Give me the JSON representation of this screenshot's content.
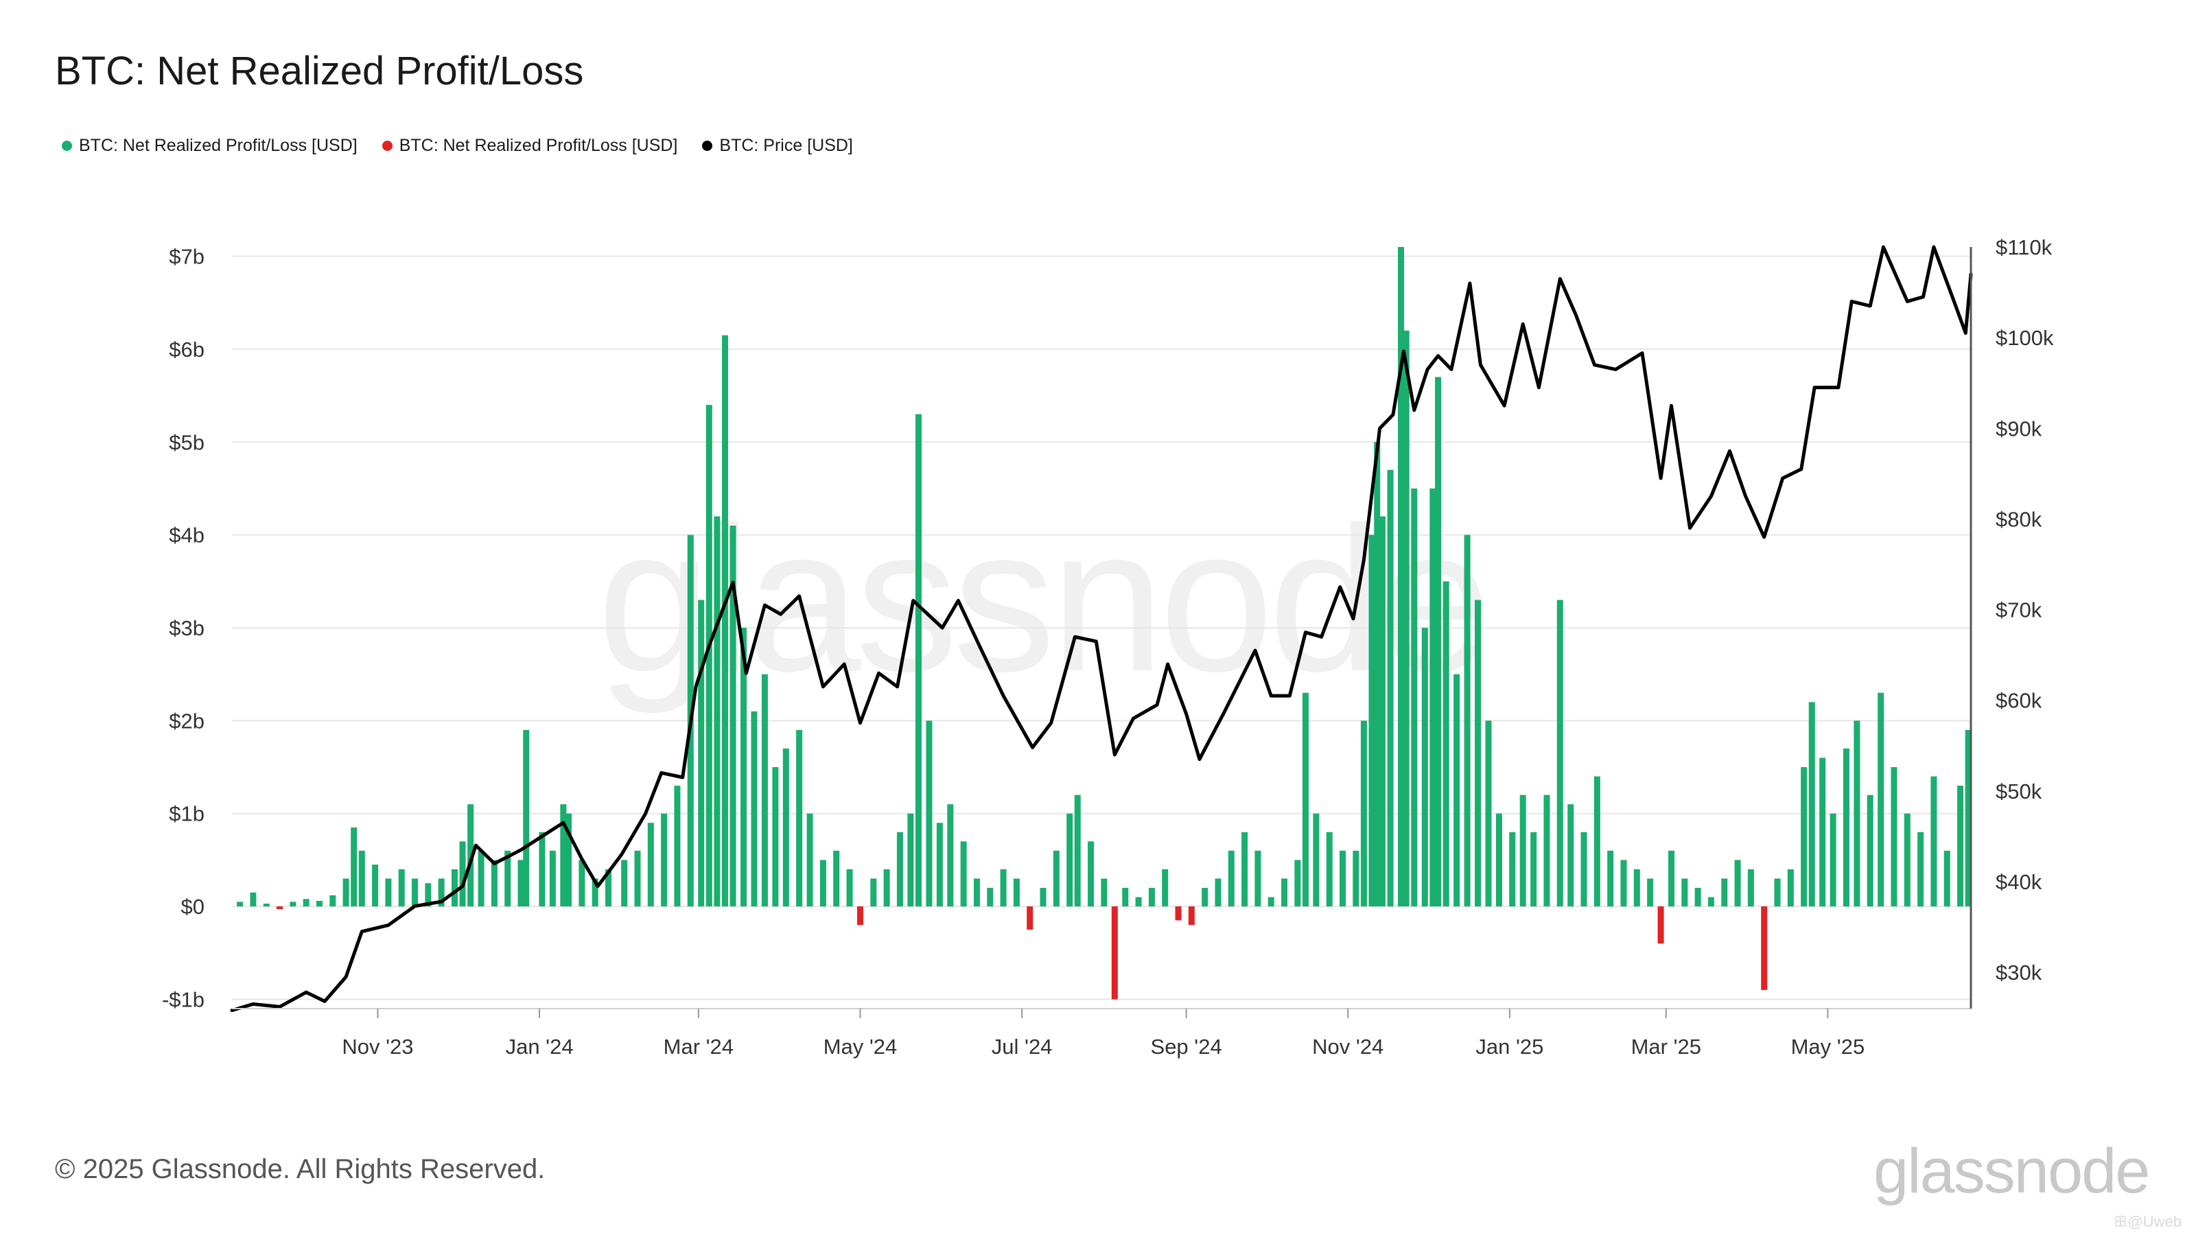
{
  "title": "BTC: Net Realized Profit/Loss",
  "legend": [
    {
      "label": "BTC: Net Realized Profit/Loss [USD]",
      "color": "#1aae6f"
    },
    {
      "label": "BTC: Net Realized Profit/Loss [USD]",
      "color": "#e02424"
    },
    {
      "label": "BTC: Price [USD]",
      "color": "#000000"
    }
  ],
  "footer": "© 2025 Glassnode. All Rights Reserved.",
  "brand": "glassnode",
  "watermark": "glassnode",
  "corner_mark": "ꕥ@Uweb",
  "chart_data": {
    "type": "bar",
    "x_start": "2023-09-07",
    "x_end": "2025-06-24",
    "x_ticks": [
      {
        "label": "Nov '23",
        "date": "2023-11-01"
      },
      {
        "label": "Jan '24",
        "date": "2024-01-01"
      },
      {
        "label": "Mar '24",
        "date": "2024-03-01"
      },
      {
        "label": "May '24",
        "date": "2024-05-01"
      },
      {
        "label": "Jul '24",
        "date": "2024-07-01"
      },
      {
        "label": "Sep '24",
        "date": "2024-09-01"
      },
      {
        "label": "Nov '24",
        "date": "2024-11-01"
      },
      {
        "label": "Jan '25",
        "date": "2025-01-01"
      },
      {
        "label": "Mar '25",
        "date": "2025-03-01"
      },
      {
        "label": "May '25",
        "date": "2025-05-01"
      }
    ],
    "y_left": {
      "ticks": [
        {
          "label": "-$1b",
          "value": -1
        },
        {
          "label": "$0",
          "value": 0
        },
        {
          "label": "$1b",
          "value": 1
        },
        {
          "label": "$2b",
          "value": 2
        },
        {
          "label": "$3b",
          "value": 3
        },
        {
          "label": "$4b",
          "value": 4
        },
        {
          "label": "$5b",
          "value": 5
        },
        {
          "label": "$6b",
          "value": 6
        },
        {
          "label": "$7b",
          "value": 7
        }
      ],
      "range": [
        -1.1,
        7.1
      ],
      "unit": "USD billions"
    },
    "y_right": {
      "ticks": [
        {
          "label": "$30k",
          "value": 30
        },
        {
          "label": "$40k",
          "value": 40
        },
        {
          "label": "$50k",
          "value": 50
        },
        {
          "label": "$60k",
          "value": 60
        },
        {
          "label": "$70k",
          "value": 70
        },
        {
          "label": "$80k",
          "value": 80
        },
        {
          "label": "$90k",
          "value": 90
        },
        {
          "label": "$100k",
          "value": 100
        },
        {
          "label": "$110k",
          "value": 110
        }
      ],
      "range": [
        26.0,
        110.0
      ],
      "unit": "USD thousands"
    },
    "grid": true,
    "positive_color": "#1aae6f",
    "negative_color": "#e02424",
    "price_color": "#000000",
    "series": [
      {
        "name": "BTC: Net Realized Profit/Loss [USD]",
        "kind": "bar",
        "y_axis": "left",
        "points": [
          [
            "2023-09-10",
            0.05
          ],
          [
            "2023-09-15",
            0.15
          ],
          [
            "2023-09-20",
            0.03
          ],
          [
            "2023-09-25",
            -0.03
          ],
          [
            "2023-09-30",
            0.05
          ],
          [
            "2023-10-05",
            0.08
          ],
          [
            "2023-10-10",
            0.06
          ],
          [
            "2023-10-15",
            0.12
          ],
          [
            "2023-10-20",
            0.3
          ],
          [
            "2023-10-23",
            0.85
          ],
          [
            "2023-10-26",
            0.6
          ],
          [
            "2023-10-31",
            0.45
          ],
          [
            "2023-11-05",
            0.3
          ],
          [
            "2023-11-10",
            0.4
          ],
          [
            "2023-11-15",
            0.3
          ],
          [
            "2023-11-20",
            0.25
          ],
          [
            "2023-11-25",
            0.3
          ],
          [
            "2023-11-30",
            0.4
          ],
          [
            "2023-12-03",
            0.7
          ],
          [
            "2023-12-06",
            1.1
          ],
          [
            "2023-12-10",
            0.6
          ],
          [
            "2023-12-15",
            0.5
          ],
          [
            "2023-12-20",
            0.6
          ],
          [
            "2023-12-25",
            0.5
          ],
          [
            "2023-12-27",
            1.9
          ],
          [
            "2024-01-02",
            0.8
          ],
          [
            "2024-01-06",
            0.6
          ],
          [
            "2024-01-10",
            1.1
          ],
          [
            "2024-01-12",
            1.0
          ],
          [
            "2024-01-17",
            0.5
          ],
          [
            "2024-01-22",
            0.3
          ],
          [
            "2024-01-27",
            0.4
          ],
          [
            "2024-02-02",
            0.5
          ],
          [
            "2024-02-07",
            0.6
          ],
          [
            "2024-02-12",
            0.9
          ],
          [
            "2024-02-17",
            1.0
          ],
          [
            "2024-02-22",
            1.3
          ],
          [
            "2024-02-27",
            4.0
          ],
          [
            "2024-03-02",
            3.3
          ],
          [
            "2024-03-05",
            5.4
          ],
          [
            "2024-03-08",
            4.2
          ],
          [
            "2024-03-11",
            6.15
          ],
          [
            "2024-03-14",
            4.1
          ],
          [
            "2024-03-18",
            3.0
          ],
          [
            "2024-03-22",
            2.1
          ],
          [
            "2024-03-26",
            2.5
          ],
          [
            "2024-03-30",
            1.5
          ],
          [
            "2024-04-03",
            1.7
          ],
          [
            "2024-04-08",
            1.9
          ],
          [
            "2024-04-12",
            1.0
          ],
          [
            "2024-04-17",
            0.5
          ],
          [
            "2024-04-22",
            0.6
          ],
          [
            "2024-04-27",
            0.4
          ],
          [
            "2024-05-01",
            -0.2
          ],
          [
            "2024-05-06",
            0.3
          ],
          [
            "2024-05-11",
            0.4
          ],
          [
            "2024-05-16",
            0.8
          ],
          [
            "2024-05-20",
            1.0
          ],
          [
            "2024-05-23",
            5.3
          ],
          [
            "2024-05-27",
            2.0
          ],
          [
            "2024-05-31",
            0.9
          ],
          [
            "2024-06-04",
            1.1
          ],
          [
            "2024-06-09",
            0.7
          ],
          [
            "2024-06-14",
            0.3
          ],
          [
            "2024-06-19",
            0.2
          ],
          [
            "2024-06-24",
            0.4
          ],
          [
            "2024-06-29",
            0.3
          ],
          [
            "2024-07-04",
            -0.25
          ],
          [
            "2024-07-09",
            0.2
          ],
          [
            "2024-07-14",
            0.6
          ],
          [
            "2024-07-19",
            1.0
          ],
          [
            "2024-07-22",
            1.2
          ],
          [
            "2024-07-27",
            0.7
          ],
          [
            "2024-08-01",
            0.3
          ],
          [
            "2024-08-05",
            -1.0
          ],
          [
            "2024-08-09",
            0.2
          ],
          [
            "2024-08-14",
            0.1
          ],
          [
            "2024-08-19",
            0.2
          ],
          [
            "2024-08-24",
            0.4
          ],
          [
            "2024-08-29",
            -0.15
          ],
          [
            "2024-09-03",
            -0.2
          ],
          [
            "2024-09-08",
            0.2
          ],
          [
            "2024-09-13",
            0.3
          ],
          [
            "2024-09-18",
            0.6
          ],
          [
            "2024-09-23",
            0.8
          ],
          [
            "2024-09-28",
            0.6
          ],
          [
            "2024-10-03",
            0.1
          ],
          [
            "2024-10-08",
            0.3
          ],
          [
            "2024-10-13",
            0.5
          ],
          [
            "2024-10-16",
            2.3
          ],
          [
            "2024-10-20",
            1.0
          ],
          [
            "2024-10-25",
            0.8
          ],
          [
            "2024-10-30",
            0.6
          ],
          [
            "2024-11-04",
            0.6
          ],
          [
            "2024-11-07",
            2.0
          ],
          [
            "2024-11-10",
            4.0
          ],
          [
            "2024-11-12",
            5.0
          ],
          [
            "2024-11-14",
            4.2
          ],
          [
            "2024-11-17",
            4.7
          ],
          [
            "2024-11-21",
            7.1
          ],
          [
            "2024-11-23",
            6.2
          ],
          [
            "2024-11-26",
            4.5
          ],
          [
            "2024-11-30",
            3.0
          ],
          [
            "2024-12-03",
            4.5
          ],
          [
            "2024-12-05",
            5.7
          ],
          [
            "2024-12-08",
            3.5
          ],
          [
            "2024-12-12",
            2.5
          ],
          [
            "2024-12-16",
            4.0
          ],
          [
            "2024-12-20",
            3.3
          ],
          [
            "2024-12-24",
            2.0
          ],
          [
            "2024-12-28",
            1.0
          ],
          [
            "2025-01-02",
            0.8
          ],
          [
            "2025-01-06",
            1.2
          ],
          [
            "2025-01-10",
            0.8
          ],
          [
            "2025-01-15",
            1.2
          ],
          [
            "2025-01-20",
            3.3
          ],
          [
            "2025-01-24",
            1.1
          ],
          [
            "2025-01-29",
            0.8
          ],
          [
            "2025-02-03",
            1.4
          ],
          [
            "2025-02-08",
            0.6
          ],
          [
            "2025-02-13",
            0.5
          ],
          [
            "2025-02-18",
            0.4
          ],
          [
            "2025-02-23",
            0.3
          ],
          [
            "2025-02-27",
            -0.4
          ],
          [
            "2025-03-03",
            0.6
          ],
          [
            "2025-03-08",
            0.3
          ],
          [
            "2025-03-13",
            0.2
          ],
          [
            "2025-03-18",
            0.1
          ],
          [
            "2025-03-23",
            0.3
          ],
          [
            "2025-03-28",
            0.5
          ],
          [
            "2025-04-02",
            0.4
          ],
          [
            "2025-04-07",
            -0.9
          ],
          [
            "2025-04-12",
            0.3
          ],
          [
            "2025-04-17",
            0.4
          ],
          [
            "2025-04-22",
            1.5
          ],
          [
            "2025-04-25",
            2.2
          ],
          [
            "2025-04-29",
            1.6
          ],
          [
            "2025-05-03",
            1.0
          ],
          [
            "2025-05-08",
            1.7
          ],
          [
            "2025-05-12",
            2.0
          ],
          [
            "2025-05-17",
            1.2
          ],
          [
            "2025-05-21",
            2.3
          ],
          [
            "2025-05-26",
            1.5
          ],
          [
            "2025-05-31",
            1.0
          ],
          [
            "2025-06-05",
            0.8
          ],
          [
            "2025-06-10",
            1.4
          ],
          [
            "2025-06-15",
            0.6
          ],
          [
            "2025-06-20",
            1.3
          ],
          [
            "2025-06-23",
            1.9
          ]
        ]
      },
      {
        "name": "BTC: Price [USD]",
        "kind": "line",
        "y_axis": "right",
        "points": [
          [
            "2023-09-07",
            25.8
          ],
          [
            "2023-09-15",
            26.5
          ],
          [
            "2023-09-25",
            26.2
          ],
          [
            "2023-10-05",
            27.8
          ],
          [
            "2023-10-12",
            26.8
          ],
          [
            "2023-10-20",
            29.5
          ],
          [
            "2023-10-26",
            34.5
          ],
          [
            "2023-11-05",
            35.2
          ],
          [
            "2023-11-15",
            37.3
          ],
          [
            "2023-11-25",
            37.8
          ],
          [
            "2023-12-03",
            39.5
          ],
          [
            "2023-12-08",
            44.0
          ],
          [
            "2023-12-15",
            42.0
          ],
          [
            "2023-12-25",
            43.5
          ],
          [
            "2024-01-02",
            45.0
          ],
          [
            "2024-01-10",
            46.5
          ],
          [
            "2024-01-17",
            42.5
          ],
          [
            "2024-01-23",
            39.5
          ],
          [
            "2024-02-01",
            43.0
          ],
          [
            "2024-02-10",
            47.5
          ],
          [
            "2024-02-16",
            52.0
          ],
          [
            "2024-02-24",
            51.5
          ],
          [
            "2024-02-29",
            61.5
          ],
          [
            "2024-03-05",
            66.0
          ],
          [
            "2024-03-14",
            73.0
          ],
          [
            "2024-03-19",
            63.0
          ],
          [
            "2024-03-26",
            70.5
          ],
          [
            "2024-04-01",
            69.5
          ],
          [
            "2024-04-08",
            71.5
          ],
          [
            "2024-04-17",
            61.5
          ],
          [
            "2024-04-25",
            64.0
          ],
          [
            "2024-05-01",
            57.5
          ],
          [
            "2024-05-08",
            63.0
          ],
          [
            "2024-05-15",
            61.5
          ],
          [
            "2024-05-21",
            71.0
          ],
          [
            "2024-06-01",
            68.0
          ],
          [
            "2024-06-07",
            71.0
          ],
          [
            "2024-06-15",
            66.0
          ],
          [
            "2024-06-24",
            60.5
          ],
          [
            "2024-07-05",
            54.8
          ],
          [
            "2024-07-12",
            57.5
          ],
          [
            "2024-07-21",
            67.0
          ],
          [
            "2024-07-29",
            66.5
          ],
          [
            "2024-08-05",
            54.0
          ],
          [
            "2024-08-12",
            58.0
          ],
          [
            "2024-08-21",
            59.5
          ],
          [
            "2024-08-25",
            64.0
          ],
          [
            "2024-09-01",
            58.5
          ],
          [
            "2024-09-06",
            53.5
          ],
          [
            "2024-09-15",
            58.5
          ],
          [
            "2024-09-27",
            65.5
          ],
          [
            "2024-10-03",
            60.5
          ],
          [
            "2024-10-10",
            60.5
          ],
          [
            "2024-10-16",
            67.5
          ],
          [
            "2024-10-22",
            67.0
          ],
          [
            "2024-10-29",
            72.5
          ],
          [
            "2024-11-03",
            69.0
          ],
          [
            "2024-11-07",
            75.5
          ],
          [
            "2024-11-13",
            90.0
          ],
          [
            "2024-11-18",
            91.5
          ],
          [
            "2024-11-22",
            98.5
          ],
          [
            "2024-11-26",
            92.0
          ],
          [
            "2024-12-01",
            96.5
          ],
          [
            "2024-12-05",
            98.0
          ],
          [
            "2024-12-10",
            96.5
          ],
          [
            "2024-12-17",
            106.0
          ],
          [
            "2024-12-21",
            97.0
          ],
          [
            "2024-12-30",
            92.5
          ],
          [
            "2025-01-06",
            101.5
          ],
          [
            "2025-01-12",
            94.5
          ],
          [
            "2025-01-20",
            106.5
          ],
          [
            "2025-01-26",
            102.5
          ],
          [
            "2025-02-02",
            97.0
          ],
          [
            "2025-02-10",
            96.5
          ],
          [
            "2025-02-20",
            98.3
          ],
          [
            "2025-02-27",
            84.5
          ],
          [
            "2025-03-03",
            92.5
          ],
          [
            "2025-03-10",
            79.0
          ],
          [
            "2025-03-18",
            82.5
          ],
          [
            "2025-03-25",
            87.5
          ],
          [
            "2025-03-31",
            82.5
          ],
          [
            "2025-04-07",
            78.0
          ],
          [
            "2025-04-14",
            84.5
          ],
          [
            "2025-04-21",
            85.5
          ],
          [
            "2025-04-26",
            94.5
          ],
          [
            "2025-05-05",
            94.5
          ],
          [
            "2025-05-10",
            104.0
          ],
          [
            "2025-05-17",
            103.5
          ],
          [
            "2025-05-22",
            110.0
          ],
          [
            "2025-05-31",
            104.0
          ],
          [
            "2025-06-06",
            104.5
          ],
          [
            "2025-06-10",
            110.0
          ],
          [
            "2025-06-17",
            104.5
          ],
          [
            "2025-06-22",
            100.5
          ],
          [
            "2025-06-24",
            107.0
          ]
        ]
      }
    ]
  }
}
